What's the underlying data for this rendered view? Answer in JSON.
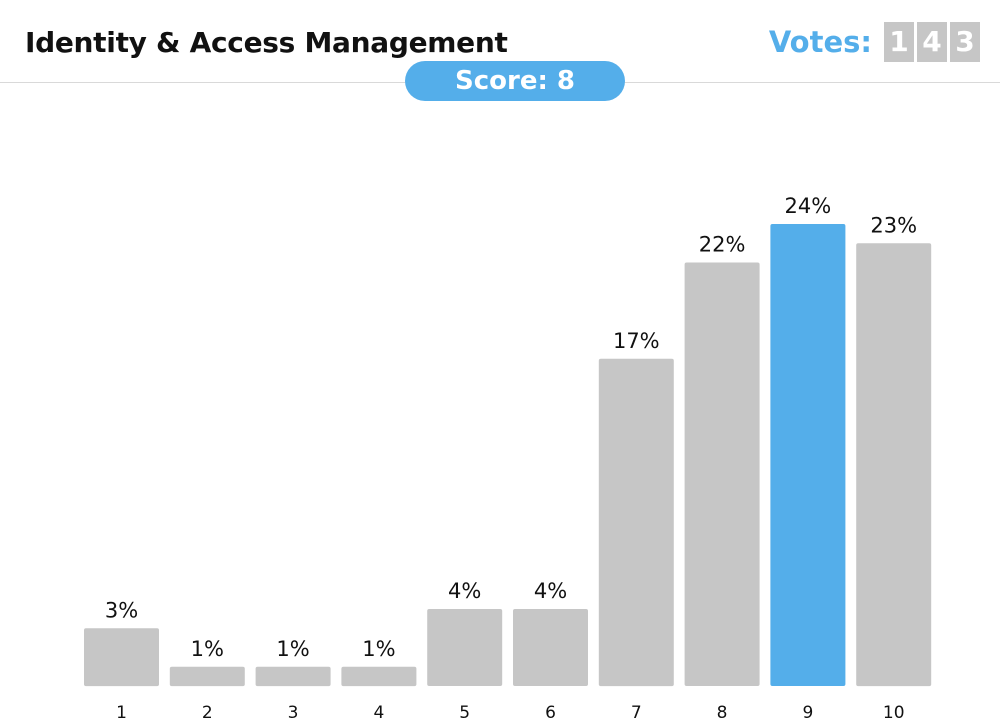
{
  "header": {
    "title": "Identity & Access Management",
    "votes_label": "Votes:",
    "votes_digits": [
      "1",
      "4",
      "3"
    ]
  },
  "score": {
    "label": "Score: 8"
  },
  "colors": {
    "accent": "#54aeea",
    "bar": "#c6c6c6",
    "highlight": "#54aeea",
    "digit_box": "#c6c6c6"
  },
  "chart_data": {
    "type": "bar",
    "categories": [
      "1",
      "2",
      "3",
      "4",
      "5",
      "6",
      "7",
      "8",
      "9",
      "10"
    ],
    "values": [
      3,
      1,
      1,
      1,
      4,
      4,
      17,
      22,
      24,
      23
    ],
    "data_labels": [
      "3%",
      "1%",
      "1%",
      "1%",
      "4%",
      "4%",
      "17%",
      "22%",
      "24%",
      "23%"
    ],
    "highlighted_category": "9",
    "title": "",
    "xlabel": "",
    "ylabel": "",
    "grid": false,
    "legend": "none"
  }
}
